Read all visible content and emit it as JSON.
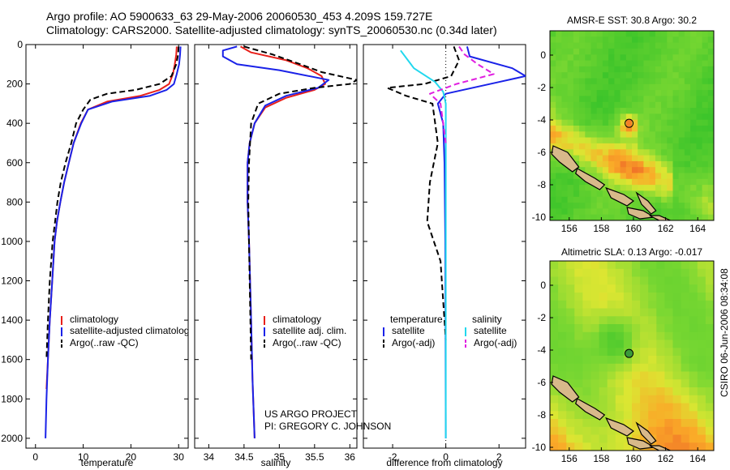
{
  "header": {
    "line1": "Argo profile: AO 5900633_63 29-May-2006 20060530_453 4.209S 159.727E",
    "line2": "Climatology: CARS2000. Satellite-adjusted climatology: synTS_20060530.nc (0.34d later)"
  },
  "credits": {
    "project": "US ARGO PROJECT",
    "pi": "PI: GREGORY C. JOHNSON",
    "stamp": "CSIRO 06-Jun-2006 08:34:08"
  },
  "colors": {
    "climatology": "#e8201a",
    "satellite": "#1a22e8",
    "argo": "#000000",
    "satellite_salinity": "#22d8ee",
    "argo_salinity": "#e020e0"
  },
  "chart_data": [
    {
      "type": "line",
      "panel": "temperature",
      "xlabel": "temperature",
      "xticks": [
        0,
        10,
        20,
        30
      ],
      "xlim": [
        -2,
        32
      ],
      "ylim": [
        2050,
        0
      ],
      "yticks": [
        0,
        200,
        400,
        600,
        800,
        1000,
        1200,
        1400,
        1600,
        1800,
        2000
      ],
      "legend": [
        "climatology",
        "satellite-adjusted climatology",
        "Argo(..raw -QC)"
      ],
      "series": [
        {
          "name": "climatology",
          "style": "solid",
          "color": "#e8201a",
          "x": [
            29.6,
            29.5,
            29.2,
            28.8,
            28.0,
            26.0,
            22.0,
            15.0,
            11.0,
            9.5,
            8.0,
            7.0,
            6.0,
            5.2,
            4.5,
            4.0,
            3.5,
            3.0,
            2.6,
            2.3
          ],
          "y": [
            10,
            50,
            100,
            150,
            200,
            230,
            260,
            290,
            330,
            400,
            500,
            600,
            700,
            800,
            900,
            1000,
            1200,
            1400,
            1600,
            1750
          ]
        },
        {
          "name": "satellite-adjusted climatology",
          "style": "solid",
          "color": "#1a22e8",
          "x": [
            30.4,
            30.3,
            30.1,
            29.6,
            29.0,
            27.5,
            24.0,
            16.0,
            11.0,
            9.6,
            8.0,
            7.0,
            6.0,
            5.2,
            4.5,
            4.0,
            3.5,
            3.0,
            2.6,
            2.3,
            2.1
          ],
          "y": [
            10,
            50,
            100,
            150,
            200,
            230,
            260,
            290,
            330,
            400,
            500,
            600,
            700,
            800,
            900,
            1000,
            1200,
            1400,
            1600,
            1800,
            2000
          ]
        },
        {
          "name": "Argo(..raw -QC)",
          "style": "dashed",
          "color": "#000000",
          "x": [
            30.0,
            29.9,
            29.5,
            28.5,
            26.0,
            21.0,
            15.0,
            11.5,
            10.0,
            8.5,
            7.5,
            6.3,
            5.3,
            4.6,
            4.1,
            3.6,
            3.0,
            2.6,
            2.3
          ],
          "y": [
            10,
            50,
            100,
            160,
            200,
            230,
            250,
            280,
            330,
            400,
            500,
            600,
            700,
            800,
            900,
            1000,
            1200,
            1400,
            1600
          ]
        }
      ]
    },
    {
      "type": "line",
      "panel": "salinity",
      "xlabel": "salinity",
      "xticks": [
        34,
        34.5,
        35,
        35.5,
        36
      ],
      "xlim": [
        33.8,
        36.1
      ],
      "ylim": [
        2050,
        0
      ],
      "legend": [
        "climatology",
        "satellite adj. clim.",
        "Argo(..raw -QC)"
      ],
      "series": [
        {
          "name": "climatology",
          "style": "solid",
          "color": "#e8201a",
          "x": [
            34.45,
            34.6,
            35.1,
            35.4,
            35.6,
            35.65,
            35.5,
            35.1,
            34.8,
            34.65,
            34.58,
            34.55,
            34.55,
            34.57,
            34.6,
            34.62,
            34.65
          ],
          "y": [
            10,
            40,
            80,
            120,
            160,
            200,
            230,
            270,
            320,
            400,
            500,
            600,
            800,
            1000,
            1400,
            1700,
            2000
          ]
        },
        {
          "name": "satellite adj. clim.",
          "style": "solid",
          "color": "#1a22e8",
          "x": [
            34.4,
            34.2,
            34.2,
            34.4,
            35.0,
            35.7,
            35.55,
            35.1,
            34.8,
            34.65,
            34.58,
            34.55,
            34.55,
            34.57,
            34.6,
            34.62,
            34.65
          ],
          "y": [
            10,
            30,
            60,
            100,
            130,
            180,
            220,
            260,
            310,
            400,
            500,
            600,
            800,
            1000,
            1400,
            1700,
            2000
          ]
        },
        {
          "name": "Argo(..raw -QC)",
          "style": "dashed",
          "color": "#000000",
          "x": [
            34.5,
            34.9,
            35.3,
            35.6,
            36.1,
            36.0,
            35.5,
            35.0,
            34.7,
            34.6,
            34.57,
            34.56,
            34.58,
            34.6
          ],
          "y": [
            10,
            50,
            100,
            140,
            180,
            200,
            220,
            250,
            300,
            400,
            600,
            800,
            1200,
            1600
          ]
        }
      ]
    },
    {
      "type": "line",
      "panel": "difference",
      "xlabel": "difference from climatology",
      "xticks": [
        -2,
        0,
        2
      ],
      "xlim": [
        -3.1,
        3.0
      ],
      "ylim": [
        2050,
        0
      ],
      "legend_headers": [
        "temperature",
        "salinity"
      ],
      "legend": [
        "satellite",
        "Argo(-adj)",
        "satellite",
        "Argo(-adj)"
      ],
      "series": [
        {
          "name": "temperature satellite",
          "style": "solid",
          "color": "#1a22e8",
          "x": [
            0.8,
            0.9,
            2.5,
            3.0,
            2.0,
            0.0,
            -0.3,
            -0.1,
            -0.05,
            -0.02,
            0.0
          ],
          "y": [
            10,
            60,
            120,
            160,
            190,
            250,
            300,
            400,
            600,
            1000,
            2000
          ]
        },
        {
          "name": "temperature Argo(-adj)",
          "style": "dashed",
          "color": "#000000",
          "x": [
            0.3,
            0.5,
            0.2,
            -0.8,
            -2.2,
            -1.5,
            -0.5,
            -0.3,
            -0.6,
            -0.7,
            -0.2,
            0.0
          ],
          "y": [
            10,
            80,
            160,
            200,
            220,
            260,
            300,
            500,
            700,
            900,
            1100,
            1500
          ]
        },
        {
          "name": "salinity satellite",
          "style": "solid",
          "color": "#22d8ee",
          "x": [
            -1.7,
            -1.2,
            -0.4,
            -0.1,
            0.0,
            0.0,
            0.0
          ],
          "y": [
            30,
            120,
            190,
            240,
            300,
            600,
            2000
          ]
        },
        {
          "name": "salinity Argo(-adj)",
          "style": "dashed",
          "color": "#e020e0",
          "x": [
            0.5,
            0.7,
            1.2,
            1.8,
            0.4,
            -0.6,
            -0.2,
            0.0
          ],
          "y": [
            10,
            50,
            100,
            150,
            200,
            250,
            300,
            500
          ]
        }
      ]
    },
    {
      "type": "heatmap",
      "panel": "map-sst",
      "title": "AMSR-E SST: 30.8 Argo: 30.2",
      "xticks": [
        156,
        158,
        160,
        162,
        164
      ],
      "yticks": [
        0,
        -2,
        -4,
        -6,
        -8,
        -10
      ],
      "xlim": [
        154.8,
        165.0
      ],
      "ylim": [
        -10.2,
        1.5
      ],
      "marker": {
        "lon": 159.727,
        "lat": -4.209
      }
    },
    {
      "type": "heatmap",
      "panel": "map-sla",
      "title": "Altimetric SLA: 0.13 Argo: -0.017",
      "xticks": [
        156,
        158,
        160,
        162,
        164
      ],
      "yticks": [
        0,
        -2,
        -4,
        -6,
        -8,
        -10
      ],
      "xlim": [
        154.8,
        165.0
      ],
      "ylim": [
        -10.2,
        1.5
      ],
      "marker": {
        "lon": 159.727,
        "lat": -4.209
      }
    }
  ]
}
